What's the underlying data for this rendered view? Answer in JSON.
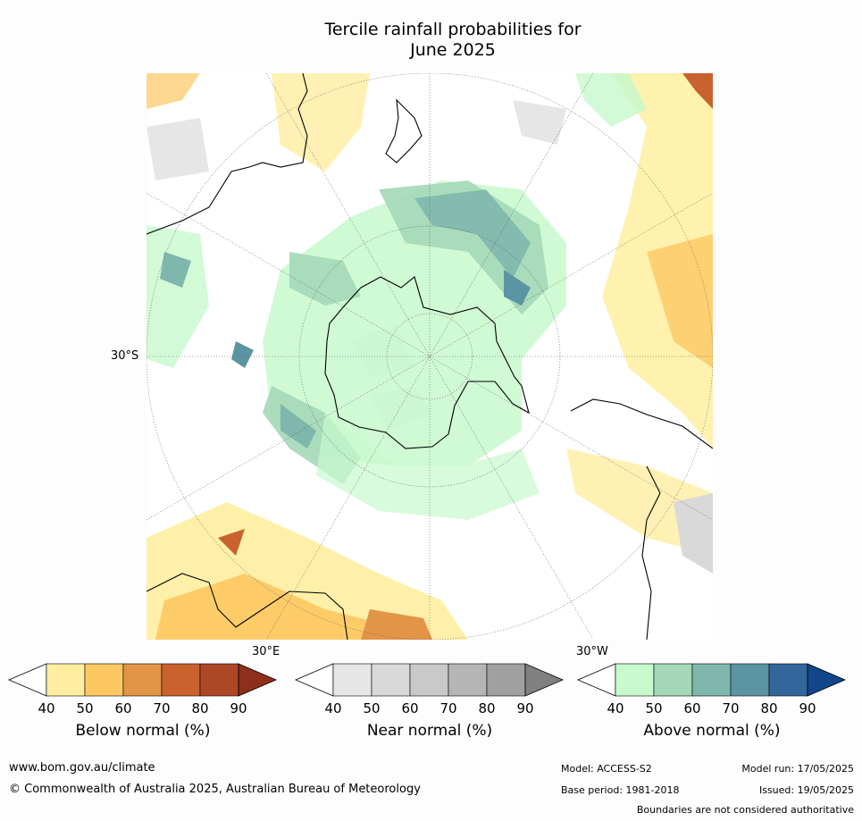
{
  "title_line1": "Tercile rainfall probabilities for",
  "title_line2": "June 2025",
  "axis_labels": {
    "lat": "30°S",
    "lon_east": "30°E",
    "lon_west": "30°W"
  },
  "colorbars": [
    {
      "name": "below",
      "title": "Below normal (%)",
      "ticks": [
        "40",
        "50",
        "60",
        "70",
        "80",
        "90"
      ],
      "colors": [
        "#ffeea0",
        "#fdc862",
        "#e29447",
        "#c9622f",
        "#ad4827"
      ],
      "over": "#8e2f19"
    },
    {
      "name": "near",
      "title": "Near normal (%)",
      "ticks": [
        "40",
        "50",
        "60",
        "70",
        "80",
        "90"
      ],
      "colors": [
        "#e6e6e6",
        "#d9d9d9",
        "#c9c9c9",
        "#b5b5b5",
        "#a0a0a0"
      ],
      "over": "#808080"
    },
    {
      "name": "above",
      "title": "Above normal (%)",
      "ticks": [
        "40",
        "50",
        "60",
        "70",
        "80",
        "90"
      ],
      "colors": [
        "#c7f9cc",
        "#a4d8b8",
        "#7fb7ad",
        "#5b94a3",
        "#33669b"
      ],
      "over": "#11468a"
    }
  ],
  "footer": {
    "website": "www.bom.gov.au/climate",
    "copyright": "© Commonwealth of Australia 2025, Australian Bureau of Meteorology",
    "model": "Model: ACCESS-S2",
    "base_period": "Base period: 1981-2018",
    "model_run": "Model run: 17/05/2025",
    "issued": "Issued: 19/05/2025",
    "disclaimer": "Boundaries are not considered authoritative"
  }
}
